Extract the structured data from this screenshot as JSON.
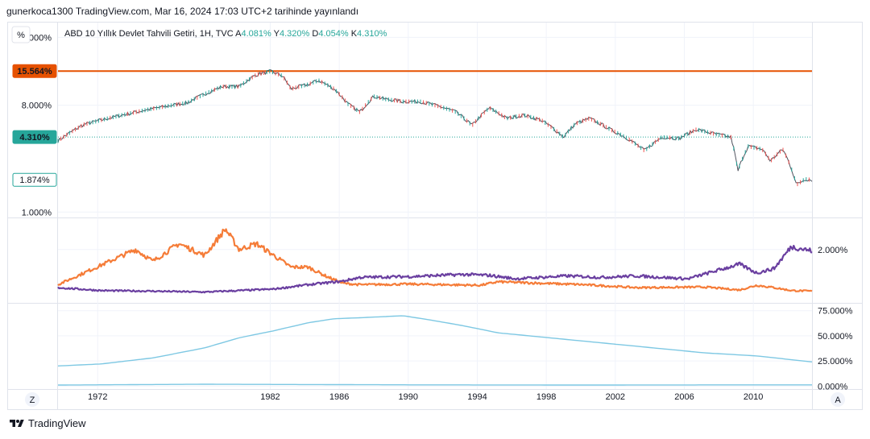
{
  "header": {
    "text": "gunerkoca1300 TradingView.com, Mar 16, 2024 17:03 UTC+2 tarihinde yayınlandı"
  },
  "footer": {
    "brand": "TradingView"
  },
  "buttons": {
    "z": "Z",
    "a": "A",
    "percent": "%"
  },
  "colors": {
    "price": "#26a69a",
    "price_down": "#ef5350",
    "price_line": "#50535e",
    "hline": "#e65100",
    "series_orange": "#f57c38",
    "series_purple": "#6a3fa0",
    "area_blue": "#7ec8e3",
    "grid": "#f0f3fa",
    "axis_text": "#131722",
    "legend_up": "#26a69a"
  },
  "chart_data": [
    {
      "type": "line",
      "panel": "price",
      "title": "ABD 10 Yıllık Devlet Tahvili Getiri, 1H, TVC",
      "ohlc": [
        {
          "label": "A",
          "value": "4.081%"
        },
        {
          "label": "Y",
          "value": "4.320%"
        },
        {
          "label": "D",
          "value": "4.054%"
        },
        {
          "label": "K",
          "value": "4.310%"
        }
      ],
      "scale": "log",
      "y_ticks": [
        "30.000%",
        "8.000%",
        "1.000%"
      ],
      "y_tick_values": [
        30,
        8,
        1
      ],
      "ylim": [
        0.9,
        40
      ],
      "badges": [
        {
          "text": "15.564%",
          "value": 15.564,
          "style": "filled-orange"
        },
        {
          "text": "4.310%",
          "value": 4.31,
          "style": "filled-green"
        },
        {
          "text": "1.874%",
          "value": 1.874,
          "style": "outline-green"
        }
      ],
      "horizontal_line": 15.564,
      "last_value_line": 4.31,
      "x": [
        1969.5,
        1971,
        1973,
        1975,
        1977,
        1979,
        1980,
        1981,
        1981.8,
        1982.5,
        1983,
        1984,
        1984.6,
        1985.5,
        1986.3,
        1987,
        1987.8,
        1988.5,
        1989.5,
        1990.5,
        1991.5,
        1992.5,
        1993.5,
        1994.5,
        1995.5,
        1996.5,
        1997.5,
        1998.8,
        1999.5,
        2000.3,
        2001.5,
        2002.5,
        2003.5,
        2004.5,
        2005.5,
        2006.5,
        2007.5,
        2008.5,
        2008.9,
        2009.5,
        2010.3,
        2010.8,
        2011.5,
        2012.3,
        2012.8,
        2013.2
      ],
      "values": [
        4.0,
        5.5,
        6.5,
        7.5,
        8.4,
        11.5,
        11.5,
        14.5,
        15.5,
        14.2,
        11.0,
        12.0,
        13.0,
        11.0,
        8.2,
        7.0,
        9.5,
        9.0,
        8.6,
        8.6,
        7.9,
        7.1,
        5.4,
        7.6,
        6.2,
        6.6,
        6.0,
        4.3,
        5.6,
        6.2,
        5.0,
        4.2,
        3.3,
        4.3,
        4.2,
        5.0,
        4.6,
        4.3,
        2.2,
        3.6,
        3.4,
        2.7,
        3.4,
        1.7,
        1.9,
        1.87
      ]
    },
    {
      "type": "line",
      "panel": "middle",
      "y_ticks": [
        "2.000%"
      ],
      "series": [
        {
          "name": "orange",
          "x": [
            1969.5,
            1971,
            1972.5,
            1974,
            1975,
            1976.5,
            1978,
            1979.2,
            1980,
            1981,
            1982,
            1983,
            1984,
            1985,
            1986,
            1987,
            1990,
            1994,
            1995,
            2000,
            2003,
            2007,
            2009,
            2010,
            2011,
            2012,
            2013.2
          ],
          "values": [
            0.8,
            1.2,
            1.6,
            2.0,
            1.6,
            2.2,
            1.8,
            2.7,
            2.0,
            2.2,
            1.8,
            1.4,
            1.4,
            1.1,
            0.85,
            0.8,
            0.82,
            0.78,
            0.9,
            0.8,
            0.7,
            0.72,
            0.62,
            0.78,
            0.7,
            0.6,
            0.58
          ]
        },
        {
          "name": "purple",
          "x": [
            1969.5,
            1972,
            1975,
            1978,
            1980,
            1982,
            1984,
            1986,
            1987,
            1990,
            1993,
            1994.5,
            1996,
            1999,
            2001,
            2003,
            2006,
            2009,
            2010,
            2011,
            2012,
            2013.2
          ],
          "values": [
            0.7,
            0.6,
            0.58,
            0.55,
            0.6,
            0.65,
            0.8,
            0.92,
            1.05,
            1.08,
            1.15,
            1.12,
            1.0,
            1.1,
            1.05,
            1.1,
            1.0,
            1.5,
            1.2,
            1.35,
            2.1,
            1.95
          ]
        }
      ]
    },
    {
      "type": "area",
      "panel": "bottom",
      "y_ticks": [
        "75.000%",
        "50.000%",
        "25.000%",
        "0.000%"
      ],
      "y_tick_values": [
        75,
        50,
        25,
        0
      ],
      "ylim": [
        -3,
        82
      ],
      "series": [
        {
          "name": "upper",
          "x": [
            1969.5,
            1972,
            1975,
            1978,
            1980,
            1982,
            1984,
            1985.5,
            1987,
            1989.5,
            1991,
            1993,
            1995,
            1998,
            2001,
            2004,
            2007,
            2010,
            2013.2
          ],
          "values": [
            20,
            22,
            28,
            38,
            48,
            55,
            63,
            67,
            68,
            70,
            66,
            60,
            53,
            48,
            43,
            38,
            33,
            30,
            24
          ]
        },
        {
          "name": "lower",
          "x": [
            1969.5,
            1978,
            1990,
            2000,
            2010,
            2013.2
          ],
          "values": [
            1.0,
            1.8,
            1.2,
            1.0,
            1.2,
            1.2
          ]
        }
      ]
    }
  ],
  "x_axis": {
    "ticks": [
      "1972",
      "1982",
      "1986",
      "1990",
      "1994",
      "1998",
      "2002",
      "2006",
      "2010"
    ],
    "tick_values": [
      1971.8,
      1981.8,
      1985.8,
      1989.8,
      1993.8,
      1997.8,
      2001.8,
      2005.8,
      2009.8
    ]
  }
}
